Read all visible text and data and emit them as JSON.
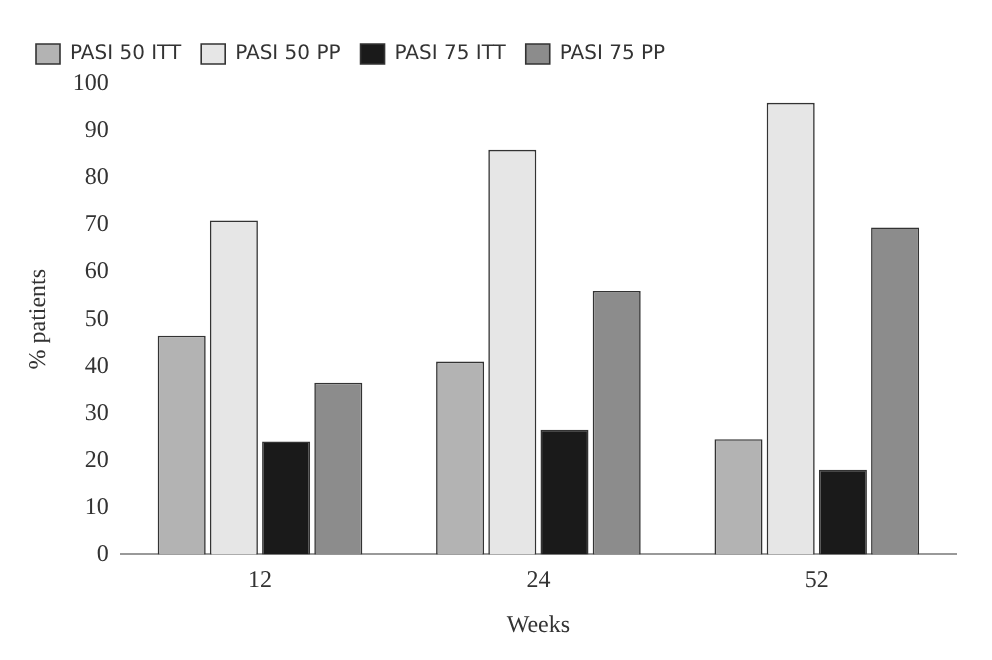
{
  "chart_data": {
    "type": "bar",
    "xlabel": "Weeks",
    "ylabel": "% patients",
    "categories": [
      "12",
      "24",
      "52"
    ],
    "series": [
      {
        "name": "PASI 50 ITT",
        "color": "#b3b3b3",
        "values": [
          46.5,
          41,
          24.5
        ]
      },
      {
        "name": "PASI 50 PP",
        "color": "#e6e6e6",
        "values": [
          71,
          86,
          96
        ]
      },
      {
        "name": "PASI 75 ITT",
        "color": "#1a1a1a",
        "values": [
          24,
          26.5,
          18
        ]
      },
      {
        "name": "PASI 75 PP",
        "color": "#8c8c8c",
        "values": [
          36.5,
          56,
          69.5
        ]
      }
    ],
    "ylim": [
      0,
      100
    ],
    "yticks": [
      0,
      10,
      20,
      30,
      40,
      50,
      60,
      70,
      80,
      90,
      100
    ],
    "grid": false,
    "legend": "top left"
  }
}
